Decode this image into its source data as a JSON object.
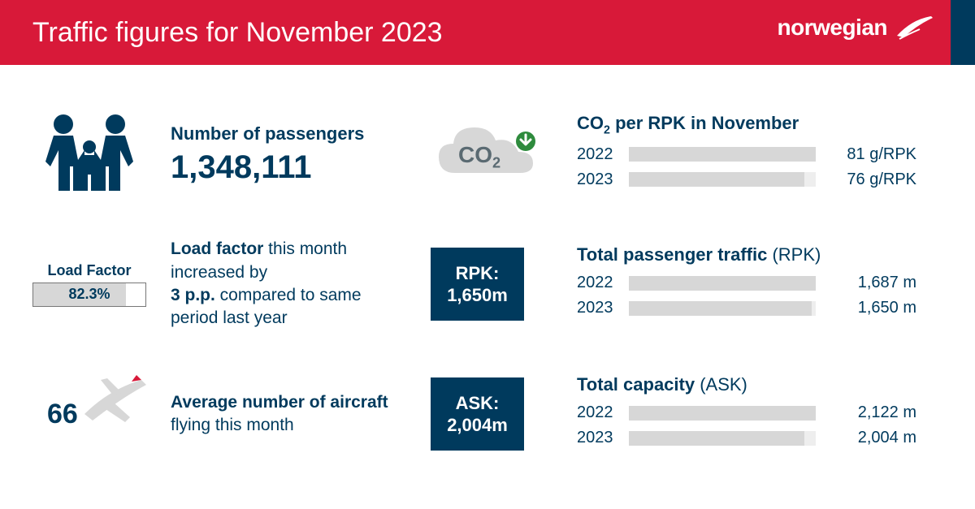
{
  "colors": {
    "red": "#d81939",
    "navy": "#003a5d",
    "bar_bg": "#eeeeee",
    "bar_fill": "#d7d7d7",
    "white": "#ffffff",
    "green": "#2e8b3d"
  },
  "header": {
    "title": "Traffic figures for November 2023",
    "brand": "norwegian"
  },
  "passengers": {
    "label": "Number of passengers",
    "value": "1,348,111"
  },
  "co2": {
    "cloud_label": "CO",
    "cloud_sub": "2",
    "title_prefix": "CO",
    "title_sub": "2",
    "title_suffix": " per RPK in November",
    "rows": [
      {
        "year": "2022",
        "value_label": "81 g/RPK",
        "pct": 100
      },
      {
        "year": "2023",
        "value_label": "76 g/RPK",
        "pct": 94
      }
    ]
  },
  "loadfactor": {
    "title": "Load Factor",
    "value": "82.3%",
    "fill_pct": 82.3,
    "desc_prefix": "Load factor",
    "desc_mid1": " this month increased by ",
    "desc_bold2": "3 p.p.",
    "desc_mid2": " compared to same period last year"
  },
  "rpk": {
    "badge_label": "RPK:",
    "badge_value": "1,650m",
    "title_main": "Total passenger traffic ",
    "title_thin": "(RPK)",
    "rows": [
      {
        "year": "2022",
        "value_label": "1,687 m",
        "pct": 100
      },
      {
        "year": "2023",
        "value_label": "1,650 m",
        "pct": 98
      }
    ]
  },
  "aircraft": {
    "count": "66",
    "desc_bold": "Average number of aircraft",
    "desc_rest": " flying this month"
  },
  "ask": {
    "badge_label": "ASK:",
    "badge_value": "2,004m",
    "title_main": "Total capacity ",
    "title_thin": "(ASK)",
    "rows": [
      {
        "year": "2022",
        "value_label": "2,122 m",
        "pct": 100
      },
      {
        "year": "2023",
        "value_label": "2,004 m",
        "pct": 94
      }
    ]
  }
}
